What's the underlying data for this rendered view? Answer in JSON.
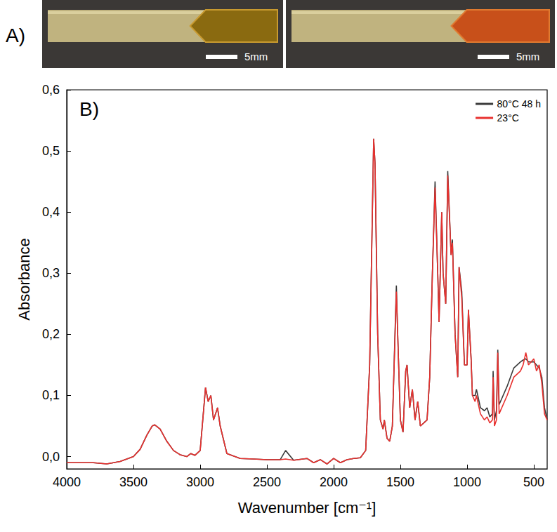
{
  "panel_a": {
    "label": "A)",
    "images": [
      {
        "scale_bar": "5mm"
      },
      {
        "scale_bar": "5mm"
      }
    ]
  },
  "chart_data": {
    "type": "line",
    "panel_label": "B)",
    "x_label": "Wavenumber [cm⁻¹]",
    "y_label": "Absorbance",
    "x": [
      4000,
      3800,
      3700,
      3600,
      3500,
      3450,
      3400,
      3360,
      3340,
      3300,
      3250,
      3200,
      3150,
      3100,
      3070,
      3040,
      3000,
      2960,
      2940,
      2920,
      2900,
      2870,
      2850,
      2800,
      2700,
      2600,
      2500,
      2400,
      2360,
      2300,
      2200,
      2150,
      2100,
      2050,
      2000,
      1950,
      1900,
      1850,
      1800,
      1760,
      1730,
      1700,
      1690,
      1670,
      1650,
      1630,
      1620,
      1600,
      1580,
      1560,
      1530,
      1520,
      1500,
      1480,
      1460,
      1450,
      1430,
      1410,
      1390,
      1370,
      1350,
      1300,
      1280,
      1260,
      1240,
      1220,
      1210,
      1190,
      1180,
      1160,
      1145,
      1120,
      1110,
      1090,
      1070,
      1060,
      1040,
      1020,
      1000,
      990,
      970,
      960,
      940,
      930,
      900,
      870,
      850,
      830,
      810,
      805,
      795,
      780,
      770,
      760,
      700,
      650,
      600,
      580,
      560,
      540,
      500,
      480,
      460,
      440,
      420,
      400
    ],
    "series": [
      {
        "name": "80°C 48 h",
        "color": "#3a3a3a",
        "values": [
          -0.01,
          -0.01,
          -0.012,
          -0.008,
          0.0,
          0.012,
          0.035,
          0.05,
          0.052,
          0.045,
          0.025,
          0.01,
          0.003,
          0.0,
          0.005,
          0.002,
          0.01,
          0.113,
          0.09,
          0.1,
          0.06,
          0.08,
          0.05,
          0.005,
          -0.003,
          -0.004,
          -0.005,
          -0.005,
          0.01,
          -0.006,
          -0.003,
          -0.01,
          -0.005,
          -0.012,
          -0.003,
          -0.01,
          -0.005,
          -0.003,
          -0.002,
          0.01,
          0.15,
          0.52,
          0.48,
          0.2,
          0.06,
          0.045,
          0.06,
          0.03,
          0.025,
          0.05,
          0.28,
          0.2,
          0.06,
          0.04,
          0.14,
          0.15,
          0.08,
          0.11,
          0.06,
          0.09,
          0.05,
          0.06,
          0.13,
          0.3,
          0.45,
          0.3,
          0.22,
          0.4,
          0.3,
          0.25,
          0.467,
          0.33,
          0.355,
          0.2,
          0.13,
          0.31,
          0.27,
          0.15,
          0.15,
          0.24,
          0.16,
          0.1,
          0.1,
          0.11,
          0.08,
          0.075,
          0.08,
          0.065,
          0.07,
          0.14,
          0.06,
          0.075,
          0.175,
          0.085,
          0.115,
          0.145,
          0.155,
          0.158,
          0.16,
          0.155,
          0.155,
          0.15,
          0.145,
          0.13,
          0.08,
          0.06
        ]
      },
      {
        "name": "23°C",
        "color": "#e8312f",
        "values": [
          -0.01,
          -0.01,
          -0.012,
          -0.008,
          0.0,
          0.012,
          0.035,
          0.05,
          0.052,
          0.045,
          0.025,
          0.01,
          0.003,
          0.0,
          0.005,
          0.002,
          0.01,
          0.113,
          0.09,
          0.1,
          0.06,
          0.08,
          0.05,
          0.005,
          -0.003,
          -0.004,
          -0.005,
          -0.005,
          -0.004,
          -0.006,
          -0.003,
          -0.01,
          -0.005,
          -0.012,
          -0.003,
          -0.01,
          -0.005,
          -0.003,
          -0.002,
          0.01,
          0.15,
          0.52,
          0.48,
          0.2,
          0.06,
          0.045,
          0.06,
          0.03,
          0.025,
          0.05,
          0.27,
          0.2,
          0.06,
          0.04,
          0.14,
          0.15,
          0.08,
          0.11,
          0.06,
          0.09,
          0.05,
          0.06,
          0.13,
          0.3,
          0.44,
          0.3,
          0.22,
          0.4,
          0.3,
          0.25,
          0.46,
          0.33,
          0.35,
          0.2,
          0.13,
          0.31,
          0.26,
          0.15,
          0.15,
          0.24,
          0.16,
          0.1,
          0.09,
          0.1,
          0.07,
          0.06,
          0.065,
          0.055,
          0.06,
          0.13,
          0.05,
          0.06,
          0.17,
          0.07,
          0.1,
          0.13,
          0.14,
          0.15,
          0.17,
          0.15,
          0.16,
          0.14,
          0.15,
          0.12,
          0.07,
          0.06
        ]
      }
    ],
    "xlim": [
      4000,
      400
    ],
    "xticks": [
      4000,
      3500,
      3000,
      2500,
      2000,
      1500,
      1000,
      500
    ],
    "ylim": [
      -0.02,
      0.6
    ],
    "yticks": [
      {
        "value": 0,
        "label": "0,0"
      },
      {
        "value": 0.1,
        "label": "0,1"
      },
      {
        "value": 0.2,
        "label": "0,2"
      },
      {
        "value": 0.3,
        "label": "0,3"
      },
      {
        "value": 0.4,
        "label": "0,4"
      },
      {
        "value": 0.5,
        "label": "0,5"
      },
      {
        "value": 0.6,
        "label": "0,6"
      }
    ],
    "grid": false,
    "legend": "upper right"
  }
}
